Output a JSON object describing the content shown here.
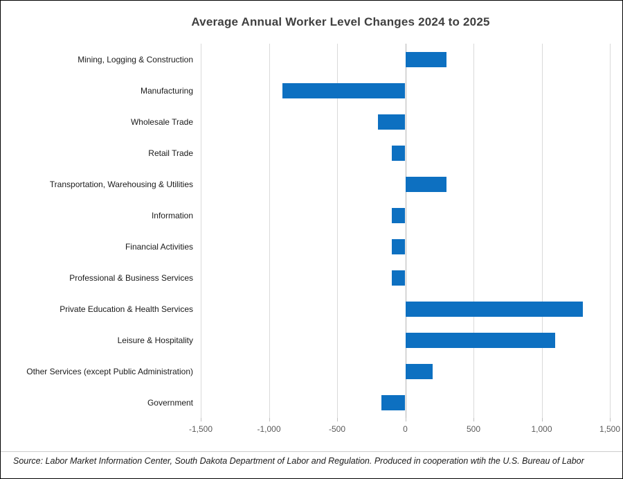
{
  "title": "Average Annual Worker Level Changes 2024 to 2025",
  "footer": {
    "source_note": "Source: Labor Market Information Center, South Dakota Department of Labor and Regulation. Produced in cooperation wtih the U.S. Bureau of Labor"
  },
  "colors": {
    "bar": "#0d70c1",
    "gridline": "#d9d9d9",
    "zero_line": "#b3b3b3",
    "title_text": "#404040",
    "tick_text": "#595959",
    "label_text": "#1a1a1a"
  },
  "chart_data": {
    "type": "bar",
    "orientation": "horizontal",
    "title": "Average Annual Worker Level Changes 2024 to 2025",
    "categories": [
      "Mining, Logging & Construction",
      "Manufacturing",
      "Wholesale Trade",
      "Retail Trade",
      "Transportation, Warehousing & Utilities",
      "Information",
      "Financial Activities",
      "Professional & Business Services",
      "Private Education & Health Services",
      "Leisure & Hospitality",
      "Other Services (except Public Administration)",
      "Government"
    ],
    "values": [
      300,
      -900,
      -200,
      -100,
      300,
      -100,
      -100,
      -100,
      1300,
      1100,
      200,
      -175
    ],
    "xlabel": "",
    "ylabel": "",
    "xlim": [
      -1500,
      1500
    ],
    "x_ticks": [
      -1500,
      -1000,
      -500,
      0,
      500,
      1000,
      1500
    ],
    "x_tick_labels": [
      "-1,500",
      "-1,000",
      "-500",
      "0",
      "500",
      "1,000",
      "1,500"
    ],
    "grid": true,
    "legend": false
  }
}
